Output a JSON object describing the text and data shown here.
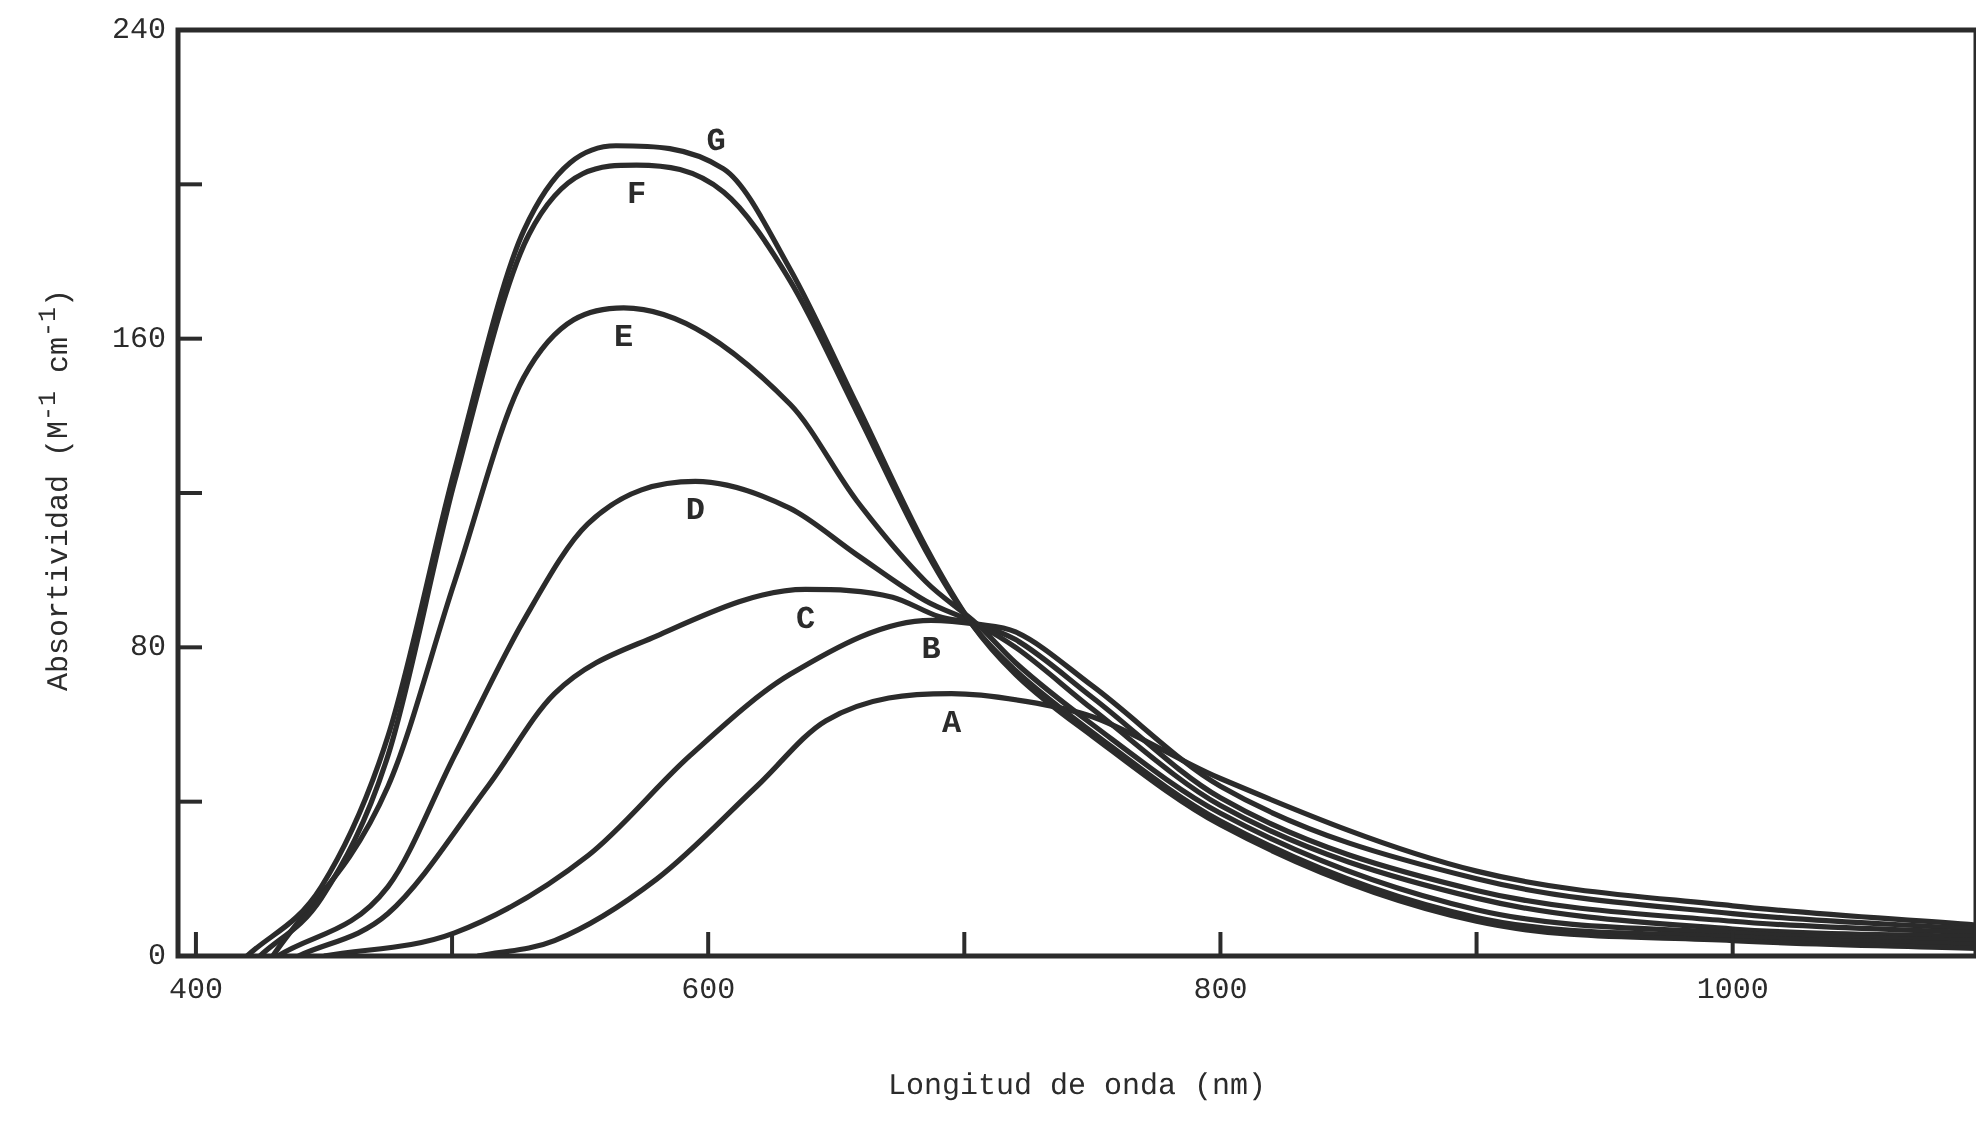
{
  "chart_data": {
    "type": "line",
    "xlabel": "Longitud de onda (nm)",
    "ylabel": "Absortividad (M$^{-1}$ cm$^{-1}$)",
    "xlim": [
      393,
      1095
    ],
    "ylim": [
      0,
      240
    ],
    "xticks": [
      400,
      {
        "value": 500,
        "label": null
      },
      600,
      {
        "value": 700,
        "label": null
      },
      800,
      {
        "value": 900,
        "label": null
      },
      1000
    ],
    "yticks": [
      0,
      {
        "value": 40,
        "label": null
      },
      80,
      {
        "value": 120,
        "label": null
      },
      160,
      {
        "value": 200,
        "label": null
      },
      240
    ],
    "grid": false,
    "legend": false,
    "marker": "none",
    "line_style": "solid",
    "series": [
      {
        "name": "G",
        "color": "#2b2b2b",
        "x": [
          420,
          449,
          475,
          501,
          528,
          564,
          606,
          632,
          658,
          685,
          703,
          720,
          750,
          800,
          900,
          1000,
          1095
        ],
        "values": [
          0,
          18,
          57,
          126,
          188,
          210,
          204,
          178,
          143,
          106,
          86,
          73,
          57,
          34,
          9,
          4,
          2
        ]
      },
      {
        "name": "F",
        "color": "#2b2b2b",
        "x": [
          425,
          449,
          475,
          501,
          530,
          572,
          606,
          632,
          658,
          685,
          703,
          720,
          750,
          800,
          900,
          1000,
          1095
        ],
        "values": [
          0,
          15,
          52,
          123,
          187,
          205,
          198,
          175,
          141,
          105,
          86,
          74,
          58,
          35,
          10,
          5,
          3
        ]
      },
      {
        "name": "E",
        "color": "#2b2b2b",
        "x": [
          430,
          475,
          501,
          528,
          567,
          632,
          658,
          685,
          705,
          720,
          750,
          800,
          900,
          1000,
          1095
        ],
        "values": [
          0,
          44,
          97,
          150,
          168,
          143,
          118,
          97,
          86,
          76,
          60,
          37,
          12,
          6,
          4
        ]
      },
      {
        "name": "D",
        "color": "#2b2b2b",
        "x": [
          432,
          475,
          501,
          528,
          553,
          595,
          632,
          658,
          685,
          705,
          720,
          750,
          800,
          900,
          1000,
          1095
        ],
        "values": [
          0,
          18,
          52,
          87,
          112,
          123,
          116,
          104,
          92,
          86,
          80,
          64,
          39,
          15,
          7,
          5
        ]
      },
      {
        "name": "C",
        "color": "#2b2b2b",
        "x": [
          440,
          475,
          514,
          540,
          580,
          638,
          672,
          690,
          705,
          720,
          750,
          800,
          900,
          1000,
          1095
        ],
        "values": [
          0,
          11,
          44,
          68,
          83,
          95,
          93,
          88,
          86,
          82,
          67,
          41,
          17,
          9,
          6
        ]
      },
      {
        "name": "B",
        "color": "#2b2b2b",
        "x": [
          450,
          501,
          553,
          593,
          632,
          687,
          705,
          720,
          750,
          800,
          900,
          1000,
          1095
        ],
        "values": [
          0,
          6,
          26,
          52,
          73,
          87,
          86,
          84,
          70,
          44,
          20,
          11,
          7
        ]
      },
      {
        "name": "A",
        "color": "#2b2b2b",
        "x": [
          510,
          540,
          580,
          619,
          646,
          695,
          724,
          750,
          800,
          900,
          1000,
          1095
        ],
        "values": [
          0,
          4,
          20,
          44,
          61,
          68,
          66,
          62,
          46,
          22,
          13,
          8
        ]
      }
    ]
  }
}
